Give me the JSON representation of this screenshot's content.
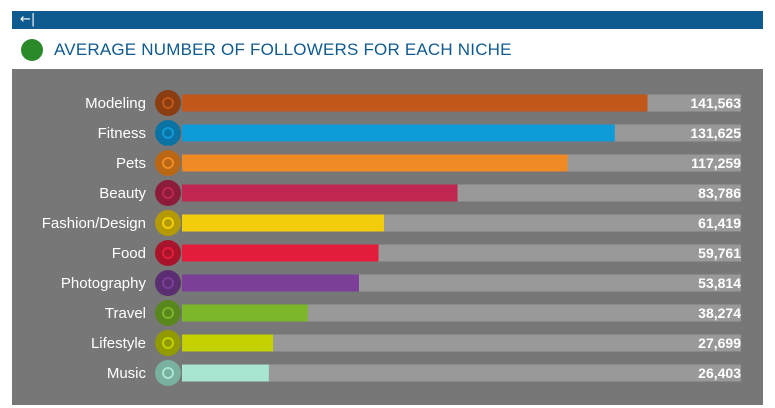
{
  "header": {
    "title": "AVERAGE NUMBER OF FOLLOWERS FOR EACH NICHE",
    "back_glyph": "←|"
  },
  "chart_data": {
    "type": "bar",
    "orientation": "horizontal",
    "title": "AVERAGE NUMBER OF FOLLOWERS FOR EACH NICHE",
    "categories": [
      "Modeling",
      "Fitness",
      "Pets",
      "Beauty",
      "Fashion/Design",
      "Food",
      "Photography",
      "Travel",
      "Lifestyle",
      "Music"
    ],
    "values": [
      141563,
      131625,
      117259,
      83786,
      61419,
      59761,
      53814,
      38274,
      27699,
      26403
    ],
    "value_labels": [
      "141,563",
      "131,625",
      "117,259",
      "83,786",
      "61,419",
      "59,761",
      "53,814",
      "38,274",
      "27,699",
      "26,403"
    ],
    "colors": [
      "#c2571a",
      "#0f9bd7",
      "#f08a24",
      "#c0264f",
      "#f3cd0b",
      "#e41c3c",
      "#7b3f98",
      "#7cb729",
      "#c4d000",
      "#a8e6d2"
    ],
    "icon_colors": [
      "#8a3e12",
      "#0b73a3",
      "#b96715",
      "#8c1c39",
      "#b59a08",
      "#a8142c",
      "#5a2e70",
      "#5a861e",
      "#919a00",
      "#7ab09f"
    ],
    "icons": [
      "model-icon",
      "dumbbell-icon",
      "paw-icon",
      "lips-icon",
      "dress-icon",
      "fork-knife-icon",
      "camera-icon",
      "airplane-icon",
      "money-bag-icon",
      "music-note-icon"
    ],
    "xlim": [
      0,
      170000
    ]
  }
}
